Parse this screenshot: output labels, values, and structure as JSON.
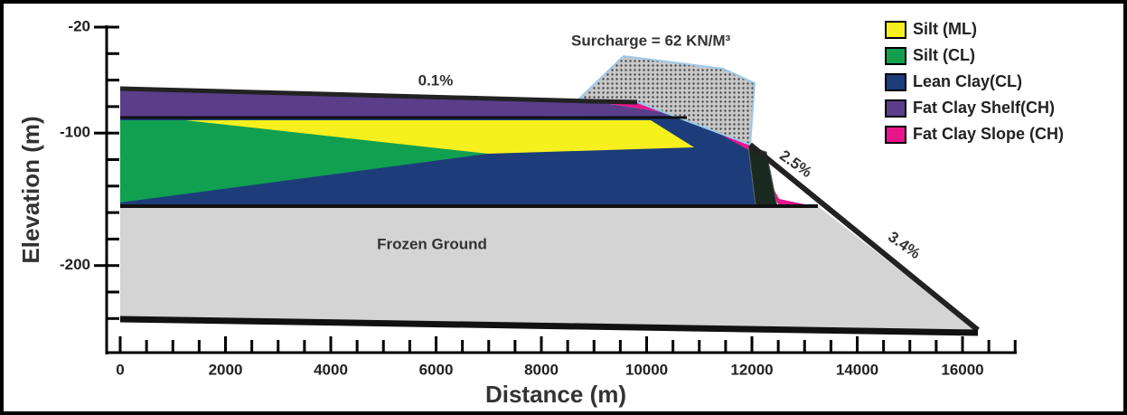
{
  "x_axis": {
    "label": "Distance (m)",
    "ticks": [
      0,
      2000,
      4000,
      6000,
      8000,
      10000,
      12000,
      14000,
      16000
    ]
  },
  "y_axis": {
    "label": "Elevation (m)",
    "ticks": [
      -20,
      -100,
      -200
    ]
  },
  "annotations": {
    "surcharge": "Surcharge = 62 KN/M³",
    "top_slope": "0.1%",
    "mid_slope": "2.5%",
    "lower_slope": "3.4%",
    "frozen": "Frozen Ground"
  },
  "legend": [
    {
      "label": "Silt (ML)",
      "color": "#f5f01e"
    },
    {
      "label": "Silt (CL)",
      "color": "#10a050"
    },
    {
      "label": "Lean Clay(CL)",
      "color": "#1c3d7a"
    },
    {
      "label": "Fat Clay Shelf(CH)",
      "color": "#5a3e8a"
    },
    {
      "label": "Fat Clay Slope (CH)",
      "color": "#e8148c"
    }
  ]
}
